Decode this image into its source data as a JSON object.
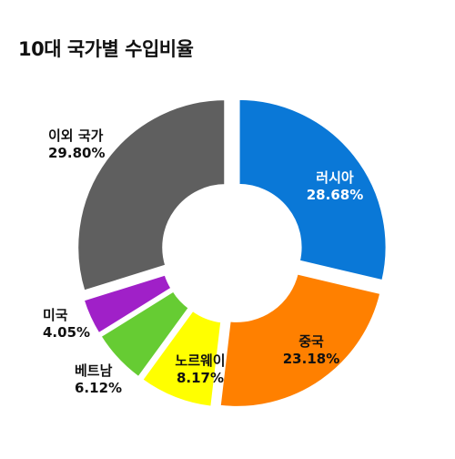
{
  "title": "10대 국가별 수입비율",
  "chart_data": {
    "type": "pie",
    "title": "10대 국가별 수입비율",
    "categories": [
      "러시아",
      "중국",
      "노르웨이",
      "베트남",
      "미국",
      "이외 국가"
    ],
    "values": [
      28.68,
      23.18,
      8.17,
      6.12,
      4.05,
      29.8
    ],
    "value_labels": [
      "28.68%",
      "23.18%",
      "8.17%",
      "6.12%",
      "4.05%",
      "29.80%"
    ],
    "colors": [
      "#0A78D7",
      "#FF8000",
      "#FFFF00",
      "#66CC33",
      "#A020C8",
      "#5F5F5F"
    ],
    "donut": true,
    "exploded": true,
    "start": "12 o'clock",
    "direction": "clockwise",
    "legend": "none",
    "labels": [
      {
        "name": "러시아",
        "value": "28.68%"
      },
      {
        "name": "중국",
        "value": "23.18%"
      },
      {
        "name": "노르웨이",
        "value": "8.17%"
      },
      {
        "name": "베트남",
        "value": "6.12%"
      },
      {
        "name": "미국",
        "value": "4.05%"
      },
      {
        "name": "이외 국가",
        "value": "29.80%"
      }
    ]
  }
}
